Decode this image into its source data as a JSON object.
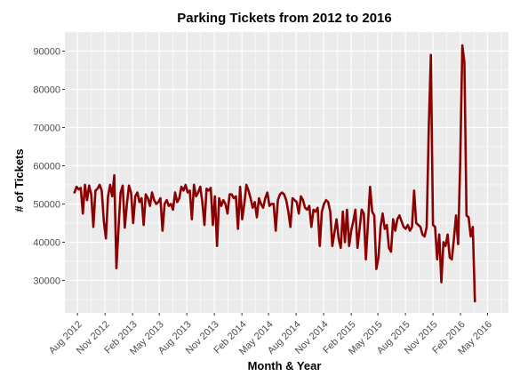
{
  "chart_data": {
    "type": "line",
    "title": "Parking Tickets from 2012 to 2016",
    "xlabel": "Month & Year",
    "ylabel": "# of Tickets",
    "x_range": [
      "2012-06-20",
      "2016-07-10"
    ],
    "ylim": [
      21500,
      95000
    ],
    "y_ticks": [
      30000,
      40000,
      50000,
      60000,
      70000,
      80000,
      90000
    ],
    "y_tick_labels": [
      "30000",
      "40000",
      "50000",
      "60000",
      "70000",
      "80000",
      "90000"
    ],
    "x_ticks": [
      "2012-08-01",
      "2012-11-01",
      "2013-02-01",
      "2013-05-01",
      "2013-08-01",
      "2013-11-01",
      "2014-02-01",
      "2014-05-01",
      "2014-08-01",
      "2014-11-01",
      "2015-02-01",
      "2015-05-01",
      "2015-08-01",
      "2015-11-01",
      "2016-02-01",
      "2016-05-01"
    ],
    "x_tick_labels": [
      "Aug 2012",
      "Nov 2012",
      "Feb 2013",
      "May 2013",
      "Aug 2013",
      "Nov 2013",
      "Feb 2014",
      "May 2014",
      "Aug 2014",
      "Nov 2014",
      "Feb 2015",
      "May 2015",
      "Aug 2015",
      "Nov 2015",
      "Feb 2016",
      "May 2016"
    ],
    "grid": true,
    "panel_color": "#ebebeb",
    "line_color": "#8b0000",
    "series": [
      {
        "name": "",
        "x": [
          "2012-07-22",
          "2012-07-29",
          "2012-08-05",
          "2012-08-12",
          "2012-08-19",
          "2012-08-26",
          "2012-09-02",
          "2012-09-09",
          "2012-09-16",
          "2012-09-23",
          "2012-09-30",
          "2012-10-07",
          "2012-10-14",
          "2012-10-21",
          "2012-10-28",
          "2012-11-04",
          "2012-11-11",
          "2012-11-18",
          "2012-11-25",
          "2012-12-02",
          "2012-12-09",
          "2012-12-16",
          "2012-12-23",
          "2012-12-30",
          "2013-01-06",
          "2013-01-13",
          "2013-01-20",
          "2013-01-27",
          "2013-02-03",
          "2013-02-10",
          "2013-02-17",
          "2013-02-24",
          "2013-03-03",
          "2013-03-10",
          "2013-03-17",
          "2013-03-24",
          "2013-03-31",
          "2013-04-07",
          "2013-04-14",
          "2013-04-21",
          "2013-04-28",
          "2013-05-05",
          "2013-05-12",
          "2013-05-19",
          "2013-05-26",
          "2013-06-02",
          "2013-06-09",
          "2013-06-16",
          "2013-06-23",
          "2013-06-30",
          "2013-07-07",
          "2013-07-14",
          "2013-07-21",
          "2013-07-28",
          "2013-08-04",
          "2013-08-11",
          "2013-08-18",
          "2013-08-25",
          "2013-09-01",
          "2013-09-08",
          "2013-09-15",
          "2013-09-22",
          "2013-09-29",
          "2013-10-06",
          "2013-10-13",
          "2013-10-20",
          "2013-10-27",
          "2013-11-03",
          "2013-11-10",
          "2013-11-17",
          "2013-11-24",
          "2013-12-01",
          "2013-12-08",
          "2013-12-15",
          "2013-12-22",
          "2013-12-29",
          "2014-01-05",
          "2014-01-12",
          "2014-01-19",
          "2014-01-26",
          "2014-02-02",
          "2014-02-09",
          "2014-02-16",
          "2014-02-23",
          "2014-03-02",
          "2014-03-09",
          "2014-03-16",
          "2014-03-23",
          "2014-03-30",
          "2014-04-06",
          "2014-04-13",
          "2014-04-20",
          "2014-04-27",
          "2014-05-04",
          "2014-05-11",
          "2014-05-18",
          "2014-05-25",
          "2014-06-01",
          "2014-06-08",
          "2014-06-15",
          "2014-06-22",
          "2014-06-29",
          "2014-07-06",
          "2014-07-13",
          "2014-07-20",
          "2014-07-27",
          "2014-08-03",
          "2014-08-10",
          "2014-08-17",
          "2014-08-24",
          "2014-08-31",
          "2014-09-07",
          "2014-09-14",
          "2014-09-21",
          "2014-09-28",
          "2014-10-05",
          "2014-10-12",
          "2014-10-19",
          "2014-10-26",
          "2014-11-02",
          "2014-11-09",
          "2014-11-16",
          "2014-11-23",
          "2014-11-30",
          "2014-12-07",
          "2014-12-14",
          "2014-12-21",
          "2014-12-28",
          "2015-01-04",
          "2015-01-11",
          "2015-01-18",
          "2015-01-25",
          "2015-02-01",
          "2015-02-08",
          "2015-02-15",
          "2015-02-22",
          "2015-03-01",
          "2015-03-08",
          "2015-03-15",
          "2015-03-22",
          "2015-03-29",
          "2015-04-05",
          "2015-04-12",
          "2015-04-19",
          "2015-04-26",
          "2015-05-03",
          "2015-05-10",
          "2015-05-17",
          "2015-05-24",
          "2015-05-31",
          "2015-06-07",
          "2015-06-14",
          "2015-06-21",
          "2015-06-28",
          "2015-07-05",
          "2015-07-12",
          "2015-07-19",
          "2015-07-26",
          "2015-08-02",
          "2015-08-09",
          "2015-08-16",
          "2015-08-23",
          "2015-08-30",
          "2015-09-06",
          "2015-09-13",
          "2015-09-20",
          "2015-09-27",
          "2015-10-04",
          "2015-10-11",
          "2015-10-18",
          "2015-10-25",
          "2015-11-01",
          "2015-11-08",
          "2015-11-15",
          "2015-11-22",
          "2015-11-29",
          "2015-12-06",
          "2015-12-13",
          "2015-12-20",
          "2015-12-27",
          "2016-01-03",
          "2016-01-10",
          "2016-01-17",
          "2016-01-24",
          "2016-01-31",
          "2016-02-07",
          "2016-02-14",
          "2016-02-21",
          "2016-02-28",
          "2016-03-06",
          "2016-03-13",
          "2016-03-20"
        ],
        "y": [
          53000,
          54500,
          53800,
          54200,
          47500,
          55000,
          51000,
          54800,
          52500,
          44000,
          53500,
          54000,
          55000,
          53500,
          45500,
          41000,
          52000,
          55000,
          52000,
          57500,
          33200,
          43500,
          53000,
          54800,
          43800,
          50000,
          54800,
          53000,
          45000,
          52000,
          53000,
          50500,
          51500,
          44500,
          52500,
          51500,
          49500,
          53000,
          51000,
          50000,
          50500,
          51500,
          43000,
          50000,
          51000,
          49500,
          50000,
          48500,
          53000,
          50500,
          51500,
          54500,
          53500,
          55000,
          53000,
          53500,
          46000,
          55000,
          52000,
          53000,
          54500,
          50500,
          44500,
          54000,
          53500,
          54200,
          44500,
          52000,
          39000,
          51500,
          49500,
          51000,
          50000,
          47500,
          52500,
          52500,
          51500,
          52000,
          43500,
          54500,
          46000,
          50000,
          55000,
          53500,
          51500,
          49000,
          50500,
          46500,
          51500,
          50000,
          49000,
          51500,
          53000,
          49500,
          50000,
          50000,
          43000,
          51000,
          52500,
          53000,
          52500,
          51000,
          48000,
          44000,
          51500,
          51000,
          50500,
          47500,
          52000,
          51000,
          49000,
          48500,
          49500,
          44000,
          48500,
          48000,
          49000,
          39000,
          48000,
          50000,
          51000,
          50500,
          48000,
          39000,
          42500,
          46000,
          41000,
          38500,
          48000,
          40000,
          48500,
          39000,
          43000,
          45500,
          48500,
          38500,
          43500,
          48500,
          47500,
          35500,
          45000,
          54500,
          48000,
          47000,
          33000,
          36000,
          44000,
          47500,
          43500,
          44500,
          38500,
          37500,
          46000,
          43000,
          46000,
          47000,
          45500,
          44000,
          43500,
          44500,
          43000,
          44000,
          53500,
          45000,
          44500,
          44000,
          42000,
          41500,
          44000,
          70000,
          89000,
          44500,
          44000,
          35500,
          42000,
          29500,
          40000,
          39000,
          42000,
          36000,
          35500,
          41000,
          47000,
          39500,
          61000,
          91500,
          87000,
          47000,
          46500,
          41500,
          44000,
          24500
        ]
      }
    ]
  }
}
